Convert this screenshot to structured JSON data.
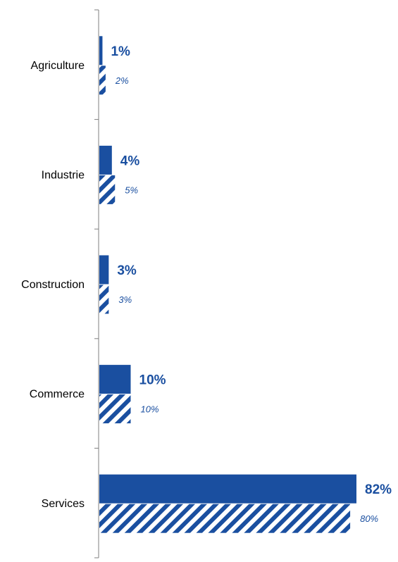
{
  "chart_data": {
    "type": "bar",
    "orientation": "horizontal",
    "categories": [
      "Agriculture",
      "Industrie",
      "Construction",
      "Commerce",
      "Services"
    ],
    "series": [
      {
        "style": "solid",
        "values": [
          1,
          4,
          3,
          10,
          82
        ],
        "labels": [
          "1%",
          "4%",
          "3%",
          "10%",
          "82%"
        ]
      },
      {
        "style": "hatched",
        "values": [
          2,
          5,
          3,
          10,
          80
        ],
        "labels": [
          "2%",
          "5%",
          "3%",
          "10%",
          "80%"
        ]
      }
    ],
    "unit": "%",
    "xlim": [
      0,
      82
    ],
    "grid": false,
    "legend": "none",
    "title": "",
    "xlabel": "",
    "ylabel": ""
  },
  "colors": {
    "bar": "#1a4fa0",
    "axis": "#7f7f7f"
  }
}
